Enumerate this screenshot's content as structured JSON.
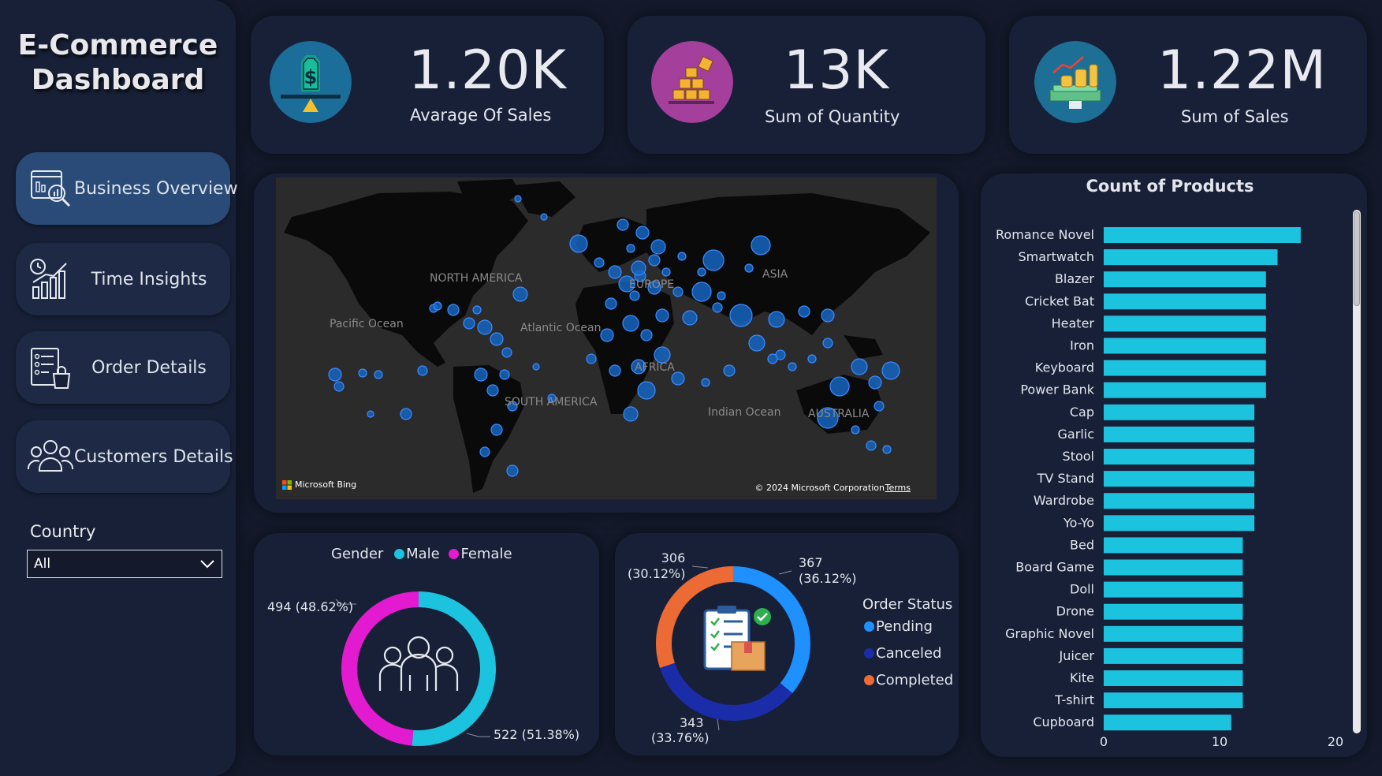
{
  "sidebar": {
    "title_line1": "E-Commerce",
    "title_line2": "Dashboard",
    "nav": [
      {
        "label": "Business Overview",
        "active": true
      },
      {
        "label": "Time Insights",
        "active": false
      },
      {
        "label": "Order Details",
        "active": false
      },
      {
        "label": "Customers Details",
        "active": false
      }
    ],
    "country_label": "Country",
    "country_value": "All"
  },
  "kpis": [
    {
      "value": "1.20K",
      "caption": "Avarage Of Sales",
      "icon": "dollar-scale-icon",
      "color": "#1b6e99"
    },
    {
      "value": "13K",
      "caption": "Sum of Quantity",
      "icon": "boxes-icon",
      "color": "#a43f9c"
    },
    {
      "value": "1.22M",
      "caption": "Sum of Sales",
      "icon": "money-stack-icon",
      "color": "#1d6f96"
    }
  ],
  "map": {
    "labels": [
      "NORTH AMERICA",
      "EUROPE",
      "ASIA",
      "Pacific Ocean",
      "Atlantic Ocean",
      "AFRICA",
      "SOUTH AMERICA",
      "Indian Ocean",
      "AUSTRALIA"
    ],
    "provider": "Microsoft Bing",
    "copyright": "© 2024 Microsoft Corporation",
    "terms": "Terms"
  },
  "gender": {
    "title": "Gender",
    "legend": [
      {
        "label": "Male",
        "color": "#1cc3df"
      },
      {
        "label": "Female",
        "color": "#e21ad0"
      }
    ],
    "female_label": "494 (48.62%)",
    "male_label": "522 (51.38%)",
    "icon": "people-group-icon"
  },
  "order_status": {
    "title": "Order Status",
    "legend": [
      {
        "label": "Pending",
        "color": "#1e90ff"
      },
      {
        "label": "Canceled",
        "color": "#1b2ca8"
      },
      {
        "label": "Completed",
        "color": "#ec6a34"
      }
    ],
    "labels": {
      "completed_n": "306",
      "completed_p": "(30.12%)",
      "pending_n": "367",
      "pending_p": "(36.12%)",
      "canceled_n": "343",
      "canceled_p": "(33.76%)"
    },
    "icon": "clipboard-package-icon"
  },
  "chart_data": [
    {
      "type": "pie",
      "title": "",
      "series": [
        {
          "name": "Male",
          "value": 522,
          "percent": 51.38
        },
        {
          "name": "Female",
          "value": 494,
          "percent": 48.62
        }
      ]
    },
    {
      "type": "pie",
      "title": "Order Status",
      "series": [
        {
          "name": "Pending",
          "value": 367,
          "percent": 36.12
        },
        {
          "name": "Canceled",
          "value": 343,
          "percent": 33.76
        },
        {
          "name": "Completed",
          "value": 306,
          "percent": 30.12
        }
      ]
    },
    {
      "type": "bar",
      "orientation": "horizontal",
      "title": "Count of Products",
      "categories": [
        "Romance Novel",
        "Smartwatch",
        "Blazer",
        "Cricket Bat",
        "Heater",
        "Iron",
        "Keyboard",
        "Power Bank",
        "Cap",
        "Garlic",
        "Stool",
        "TV Stand",
        "Wardrobe",
        "Yo-Yo",
        "Bed",
        "Board Game",
        "Doll",
        "Drone",
        "Graphic Novel",
        "Juicer",
        "Kite",
        "T-shirt",
        "Cupboard"
      ],
      "values": [
        17,
        15,
        14,
        14,
        14,
        14,
        14,
        14,
        13,
        13,
        13,
        13,
        13,
        13,
        12,
        12,
        12,
        12,
        12,
        12,
        12,
        12,
        11
      ],
      "xlim": [
        0,
        20
      ],
      "xticks": [
        "0",
        "10",
        "20"
      ],
      "bar_color": "#1cc3df"
    }
  ]
}
